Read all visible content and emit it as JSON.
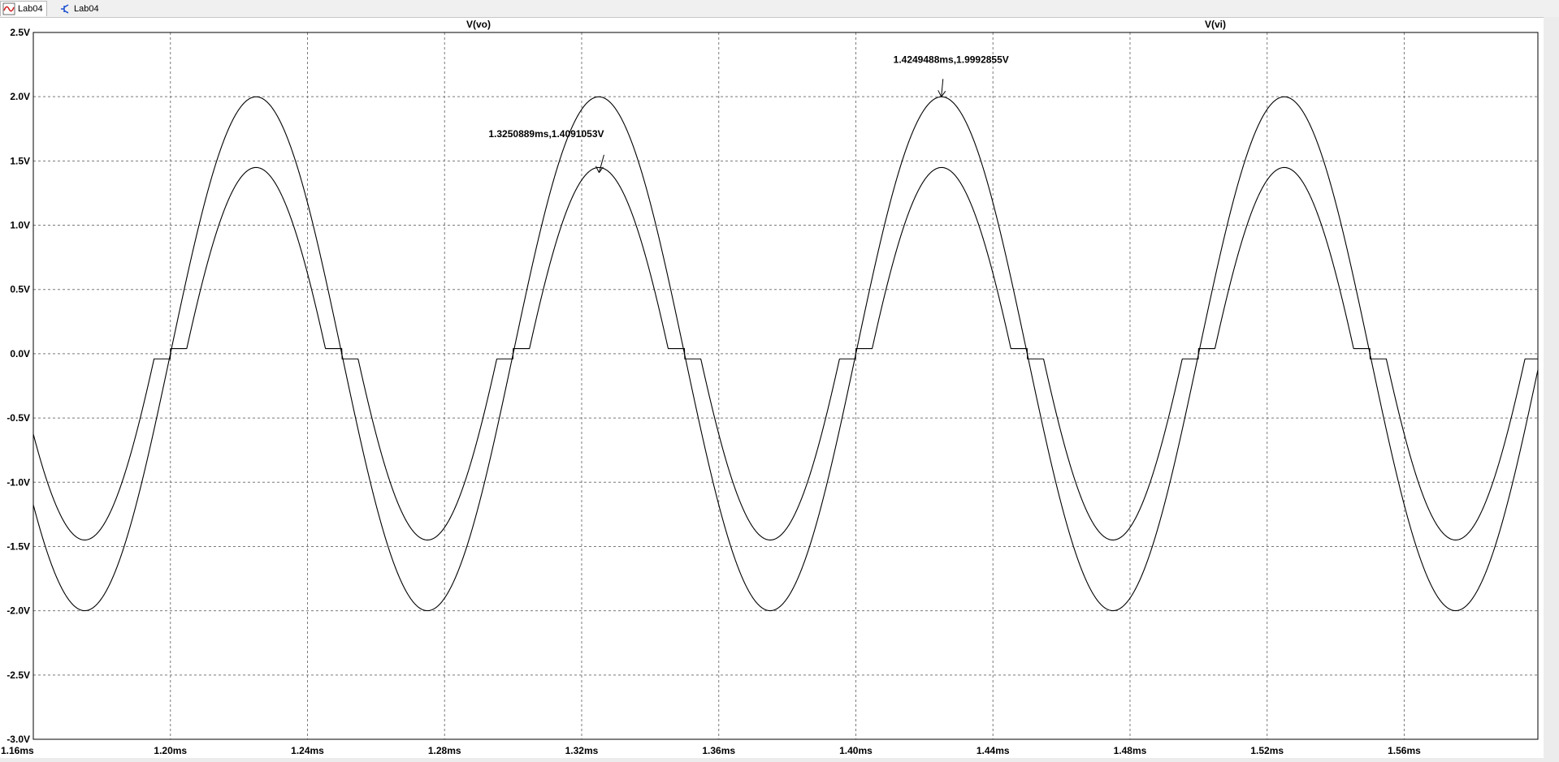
{
  "tabs": [
    {
      "label": "Lab04",
      "icon": "waveform-viewer-icon",
      "active": true
    },
    {
      "label": "Lab04",
      "icon": "schematic-icon",
      "active": false
    }
  ],
  "chart_data": {
    "type": "line",
    "title": "",
    "series": [
      {
        "name": "V(vo)",
        "color": "#000000",
        "amplitude": 1.4091053,
        "frequency_khz": 10,
        "phase_peak_ms": 1.325,
        "notes": ""
      },
      {
        "name": "V(vi)",
        "color": "#000000",
        "amplitude": 1.9992855,
        "frequency_khz": 10,
        "phase_peak_ms": 1.425,
        "notes": ""
      }
    ],
    "xlim": [
      1.16,
      1.599
    ],
    "ylim": [
      -3.0,
      2.5
    ],
    "xticks": [
      "1.16ms",
      "1.20ms",
      "1.24ms",
      "1.28ms",
      "1.32ms",
      "1.36ms",
      "1.40ms",
      "1.44ms",
      "1.48ms",
      "1.52ms",
      "1.56ms"
    ],
    "xtick_values": [
      1.16,
      1.2,
      1.24,
      1.28,
      1.32,
      1.36,
      1.4,
      1.44,
      1.48,
      1.52,
      1.56
    ],
    "yticks": [
      "2.5V",
      "2.0V",
      "1.5V",
      "1.0V",
      "0.5V",
      "0.0V",
      "-0.5V",
      "-1.0V",
      "-1.5V",
      "-2.0V",
      "-2.5V",
      "-3.0V"
    ],
    "ytick_values": [
      2.5,
      2.0,
      1.5,
      1.0,
      0.5,
      0.0,
      -0.5,
      -1.0,
      -1.5,
      -2.0,
      -2.5,
      -3.0
    ],
    "grid": true,
    "annotations": [
      {
        "text": "1.3250889ms,1.4091053V",
        "x": 1.3250889,
        "y": 1.4091053
      },
      {
        "text": "1.4249488ms,1.9992855V",
        "x": 1.4249488,
        "y": 1.9992855
      }
    ]
  }
}
